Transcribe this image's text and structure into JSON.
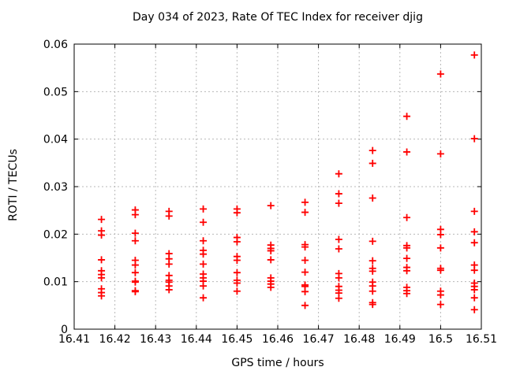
{
  "colors": {
    "background": "#ffffff",
    "axis": "#000000",
    "grid": "#b8b8b8",
    "marker": "#ff0000"
  },
  "chart_data": {
    "type": "scatter",
    "title": "Day 034 of 2023, Rate Of TEC Index for receiver djig",
    "xlabel": "GPS time / hours",
    "ylabel": "ROTI / TECUs",
    "xlim": [
      16.41,
      16.51
    ],
    "ylim": [
      0,
      0.06
    ],
    "grid": true,
    "legend_position": "none",
    "marker": {
      "shape": "plus",
      "color": "#ff0000",
      "size": 9
    },
    "xticks": [
      {
        "v": 16.41,
        "label": "16.41"
      },
      {
        "v": 16.42,
        "label": "16.42"
      },
      {
        "v": 16.43,
        "label": "16.43"
      },
      {
        "v": 16.44,
        "label": "16.44"
      },
      {
        "v": 16.45,
        "label": "16.45"
      },
      {
        "v": 16.46,
        "label": "16.46"
      },
      {
        "v": 16.47,
        "label": "16.47"
      },
      {
        "v": 16.48,
        "label": "16.48"
      },
      {
        "v": 16.49,
        "label": "16.49"
      },
      {
        "v": 16.5,
        "label": "16.5"
      },
      {
        "v": 16.51,
        "label": "16.51"
      }
    ],
    "yticks": [
      {
        "v": 0,
        "label": "0"
      },
      {
        "v": 0.01,
        "label": "0.01"
      },
      {
        "v": 0.02,
        "label": "0.02"
      },
      {
        "v": 0.03,
        "label": "0.03"
      },
      {
        "v": 0.04,
        "label": "0.04"
      },
      {
        "v": 0.05,
        "label": "0.05"
      },
      {
        "v": 0.06,
        "label": "0.06"
      }
    ],
    "series": [
      {
        "name": "ROTI",
        "color": "#ff0000",
        "clusters": [
          {
            "x": 16.4167,
            "y": [
              0.0231,
              0.0207,
              0.0198,
              0.0146,
              0.0123,
              0.0115,
              0.0108,
              0.0085,
              0.0077,
              0.007
            ]
          },
          {
            "x": 16.425,
            "y": [
              0.0251,
              0.0241,
              0.0202,
              0.0186,
              0.0145,
              0.0135,
              0.0119,
              0.0101,
              0.0099,
              0.0081,
              0.0079
            ]
          },
          {
            "x": 16.4333,
            "y": [
              0.0248,
              0.0238,
              0.0159,
              0.0148,
              0.0137,
              0.0113,
              0.0103,
              0.0099,
              0.0091,
              0.0083
            ]
          },
          {
            "x": 16.4417,
            "y": [
              0.0253,
              0.0225,
              0.0186,
              0.0166,
              0.0158,
              0.0137,
              0.0116,
              0.0108,
              0.0101,
              0.0091,
              0.0066
            ]
          },
          {
            "x": 16.45,
            "y": [
              0.0253,
              0.0245,
              0.0193,
              0.0184,
              0.0153,
              0.0145,
              0.0119,
              0.0103,
              0.0097,
              0.008
            ]
          },
          {
            "x": 16.4583,
            "y": [
              0.026,
              0.0177,
              0.017,
              0.0165,
              0.0146,
              0.0108,
              0.0101,
              0.0095,
              0.0088
            ]
          },
          {
            "x": 16.4667,
            "y": [
              0.0267,
              0.0246,
              0.0178,
              0.0173,
              0.0145,
              0.012,
              0.0093,
              0.009,
              0.0079,
              0.005
            ]
          },
          {
            "x": 16.475,
            "y": [
              0.0327,
              0.0285,
              0.0265,
              0.0189,
              0.0169,
              0.0117,
              0.0108,
              0.009,
              0.0082,
              0.0076,
              0.0065
            ]
          },
          {
            "x": 16.4833,
            "y": [
              0.0376,
              0.0349,
              0.0276,
              0.0185,
              0.0144,
              0.0128,
              0.0122,
              0.0099,
              0.0091,
              0.008,
              0.0056,
              0.0052
            ]
          },
          {
            "x": 16.4917,
            "y": [
              0.0448,
              0.0373,
              0.0235,
              0.0176,
              0.0171,
              0.0149,
              0.013,
              0.0123,
              0.0088,
              0.0081,
              0.0075
            ]
          },
          {
            "x": 16.5,
            "y": [
              0.0537,
              0.0369,
              0.021,
              0.0199,
              0.0171,
              0.0128,
              0.0124,
              0.008,
              0.0072,
              0.0052
            ]
          },
          {
            "x": 16.5083,
            "y": [
              0.0577,
              0.0401,
              0.0248,
              0.0205,
              0.0182,
              0.0135,
              0.0124,
              0.0097,
              0.009,
              0.0083,
              0.0066,
              0.0041
            ]
          }
        ]
      }
    ]
  }
}
